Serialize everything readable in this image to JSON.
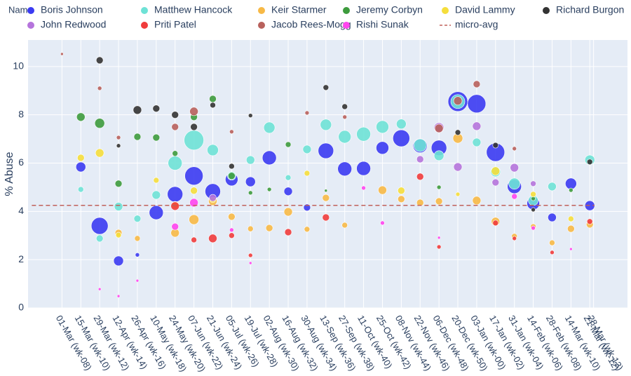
{
  "chart_data": {
    "type": "scatter",
    "y_label": "% Abuse",
    "legend_title": "Name",
    "ylim": [
      0,
      11.1
    ],
    "yticks": [
      0,
      2,
      4,
      6,
      8,
      10
    ],
    "xlim": [
      -3.6,
      60
    ],
    "grid": true,
    "xticks": [
      {
        "value": 0,
        "label": "01-Mar (wk-08)"
      },
      {
        "value": 2,
        "label": "15-Mar (wk-10)"
      },
      {
        "value": 4,
        "label": "29-Mar (wk-12)"
      },
      {
        "value": 6,
        "label": "12-Apr (wk-14)"
      },
      {
        "value": 8,
        "label": "26-Apr (wk-16)"
      },
      {
        "value": 10,
        "label": "10-May (wk-18)"
      },
      {
        "value": 12,
        "label": "24-May (wk-20)"
      },
      {
        "value": 14,
        "label": "07-Jun (wk-22)"
      },
      {
        "value": 16,
        "label": "21-Jun (wk-24)"
      },
      {
        "value": 18,
        "label": "05-Jul (wk-26)"
      },
      {
        "value": 20,
        "label": "19-Jul (wk-28)"
      },
      {
        "value": 22,
        "label": "02-Aug (wk-30)"
      },
      {
        "value": 24,
        "label": "16-Aug (wk-32)"
      },
      {
        "value": 26,
        "label": "30-Aug (wk-34)"
      },
      {
        "value": 28,
        "label": "13-Sep (wk-36)"
      },
      {
        "value": 30,
        "label": "27-Sep (wk-38)"
      },
      {
        "value": 32,
        "label": "11-Oct (wk-40)"
      },
      {
        "value": 34,
        "label": "25-Oct (wk-42)"
      },
      {
        "value": 36,
        "label": "08-Nov (wk-44)"
      },
      {
        "value": 38,
        "label": "22-Nov (wk-46)"
      },
      {
        "value": 40,
        "label": "06-Dec (wk-48)"
      },
      {
        "value": 42,
        "label": "20-Dec (wk-50)"
      },
      {
        "value": 44,
        "label": "03-Jan (wk-00)"
      },
      {
        "value": 46,
        "label": "17-Jan (wk-02)"
      },
      {
        "value": 48,
        "label": "31-Jan (wk-04)"
      },
      {
        "value": 50,
        "label": "14-Feb (wk-06)"
      },
      {
        "value": 52,
        "label": "28-Feb (wk-08)"
      },
      {
        "value": 54,
        "label": "14-Mar (wk-10)"
      },
      {
        "value": 56,
        "label": "21-Mar (wk-12)"
      },
      {
        "value": 56.4,
        "label": "28-Mar (wk-13)"
      }
    ],
    "series": [
      {
        "name": "Boris Johnson",
        "color": "#3b3bf2",
        "x": [
          2,
          4,
          6,
          8,
          10,
          12,
          14,
          16,
          18,
          20,
          22,
          24,
          26,
          28,
          30,
          32,
          34,
          36,
          38,
          40,
          42,
          44,
          46,
          48,
          50,
          52,
          54,
          56
        ],
        "values": [
          5.84,
          3.4,
          1.95,
          2.2,
          3.95,
          4.71,
          5.47,
          4.83,
          5.32,
          5.23,
          6.22,
          4.83,
          4.16,
          6.51,
          5.76,
          5.78,
          6.63,
          7.03,
          6.72,
          6.63,
          8.55,
          8.46,
          6.45,
          5.03,
          4.33,
          3.75,
          5.15,
          4.24
        ],
        "sizes": [
          14,
          24,
          14,
          6,
          20,
          22,
          26,
          22,
          18,
          14,
          20,
          12,
          10,
          22,
          20,
          20,
          18,
          24,
          20,
          22,
          28,
          26,
          26,
          20,
          18,
          12,
          16,
          14
        ]
      },
      {
        "name": "Matthew Hancock",
        "color": "#6ee2d6",
        "x": [
          2,
          4,
          6,
          8,
          10,
          12,
          14,
          16,
          18,
          20,
          22,
          24,
          26,
          28,
          30,
          32,
          34,
          36,
          38,
          40,
          42,
          44,
          46,
          48,
          50,
          52,
          56
        ],
        "values": [
          4.91,
          2.88,
          4.2,
          3.7,
          4.68,
          6.0,
          6.95,
          6.54,
          5.47,
          6.13,
          7.47,
          5.4,
          6.57,
          7.59,
          7.09,
          7.2,
          7.5,
          7.62,
          6.74,
          6.31,
          8.55,
          6.86,
          5.64,
          5.15,
          4.45,
          5.03,
          6.13
        ],
        "sizes": [
          8,
          10,
          12,
          10,
          12,
          20,
          28,
          16,
          12,
          12,
          16,
          8,
          12,
          16,
          18,
          20,
          18,
          14,
          18,
          14,
          20,
          12,
          14,
          16,
          14,
          12,
          14
        ]
      },
      {
        "name": "Keir Starmer",
        "color": "#f7b946",
        "x": [
          6,
          8,
          12,
          14,
          16,
          18,
          20,
          22,
          24,
          26,
          28,
          30,
          34,
          36,
          38,
          40,
          42,
          44,
          46,
          48,
          50,
          52,
          54,
          56
        ],
        "values": [
          3.11,
          2.88,
          3.11,
          3.66,
          4.42,
          3.78,
          3.28,
          3.31,
          3.98,
          3.26,
          4.56,
          3.43,
          4.88,
          4.51,
          4.36,
          4.42,
          7.03,
          4.45,
          3.58,
          2.97,
          3.37,
          2.7,
          3.28,
          3.46
        ],
        "sizes": [
          10,
          8,
          12,
          14,
          12,
          10,
          8,
          10,
          12,
          8,
          10,
          8,
          12,
          10,
          10,
          10,
          14,
          12,
          12,
          8,
          8,
          8,
          10,
          10
        ]
      },
      {
        "name": "Jeremy Corbyn",
        "color": "#3d9b3d",
        "x": [
          2,
          4,
          6,
          8,
          10,
          12,
          14,
          16,
          18,
          20,
          22,
          24,
          28,
          40,
          50,
          54
        ],
        "values": [
          7.91,
          7.65,
          5.15,
          7.09,
          7.06,
          6.4,
          7.91,
          8.66,
          5.47,
          4.77,
          4.91,
          6.77,
          4.86,
          5.0,
          4.53,
          4.88
        ],
        "sizes": [
          12,
          14,
          10,
          10,
          10,
          8,
          10,
          10,
          10,
          6,
          6,
          8,
          4,
          6,
          6,
          6
        ]
      },
      {
        "name": "David Lammy",
        "color": "#f5de3c",
        "x": [
          2,
          4,
          6,
          10,
          12,
          14,
          16,
          26,
          36,
          42,
          46,
          50,
          54
        ],
        "values": [
          6.22,
          6.42,
          3.02,
          5.29,
          4.27,
          4.86,
          4.48,
          5.58,
          4.86,
          4.71,
          5.67,
          4.71,
          3.69
        ],
        "sizes": [
          10,
          12,
          8,
          8,
          10,
          10,
          8,
          8,
          10,
          6,
          12,
          8,
          8
        ]
      },
      {
        "name": "Richard Burgon",
        "color": "#333333",
        "x": [
          4,
          6,
          8,
          10,
          12,
          14,
          16,
          18,
          20,
          28,
          30,
          42,
          46,
          50,
          56
        ],
        "values": [
          10.26,
          6.72,
          8.2,
          8.26,
          8.0,
          7.5,
          8.4,
          5.87,
          7.97,
          9.13,
          8.34,
          7.27,
          6.74,
          4.07,
          6.05
        ],
        "sizes": [
          10,
          6,
          12,
          10,
          10,
          10,
          8,
          8,
          6,
          8,
          8,
          8,
          8,
          6,
          8
        ]
      },
      {
        "name": "John Redwood",
        "color": "#b574dc",
        "x": [
          16,
          38,
          40,
          42,
          44,
          46,
          48,
          50
        ],
        "values": [
          4.56,
          6.16,
          7.47,
          5.84,
          7.53,
          5.2,
          5.81,
          5.15
        ],
        "sizes": [
          10,
          10,
          14,
          12,
          12,
          10,
          12,
          8
        ]
      },
      {
        "name": "Priti Patel",
        "color": "#f03c3c",
        "x": [
          12,
          14,
          16,
          18,
          20,
          24,
          28,
          38,
          40,
          46,
          48,
          52,
          56
        ],
        "values": [
          4.22,
          2.82,
          2.88,
          3.0,
          2.18,
          3.14,
          3.75,
          5.44,
          2.53,
          3.52,
          2.88,
          2.3,
          3.58
        ],
        "sizes": [
          12,
          8,
          12,
          8,
          6,
          10,
          10,
          10,
          6,
          8,
          6,
          6,
          8
        ]
      },
      {
        "name": "Jacob Rees-Mogg",
        "color": "#b8615c",
        "x": [
          0,
          4,
          6,
          12,
          14,
          18,
          26,
          30,
          40,
          42,
          44,
          48
        ],
        "values": [
          10.52,
          9.1,
          7.06,
          7.5,
          8.14,
          7.3,
          8.08,
          7.91,
          7.44,
          8.58,
          9.27,
          6.6
        ],
        "sizes": [
          4,
          6,
          6,
          10,
          12,
          6,
          6,
          6,
          12,
          12,
          10,
          6
        ]
      },
      {
        "name": "Rishi Sunak",
        "color": "#ff45ee",
        "x": [
          4,
          6,
          8,
          12,
          14,
          18,
          20,
          32,
          34,
          40,
          48,
          50,
          54
        ],
        "values": [
          0.78,
          0.49,
          1.13,
          3.37,
          4.36,
          3.23,
          1.86,
          4.97,
          3.52,
          2.91,
          4.62,
          3.31,
          2.44
        ],
        "sizes": [
          4,
          4,
          4,
          10,
          12,
          6,
          4,
          6,
          6,
          4,
          8,
          6,
          4
        ]
      },
      {
        "name": "micro-avg",
        "color": "#c0605a",
        "mode": "dash",
        "x": [
          -3.2,
          56.5
        ],
        "values": [
          4.25,
          4.25
        ]
      }
    ]
  }
}
